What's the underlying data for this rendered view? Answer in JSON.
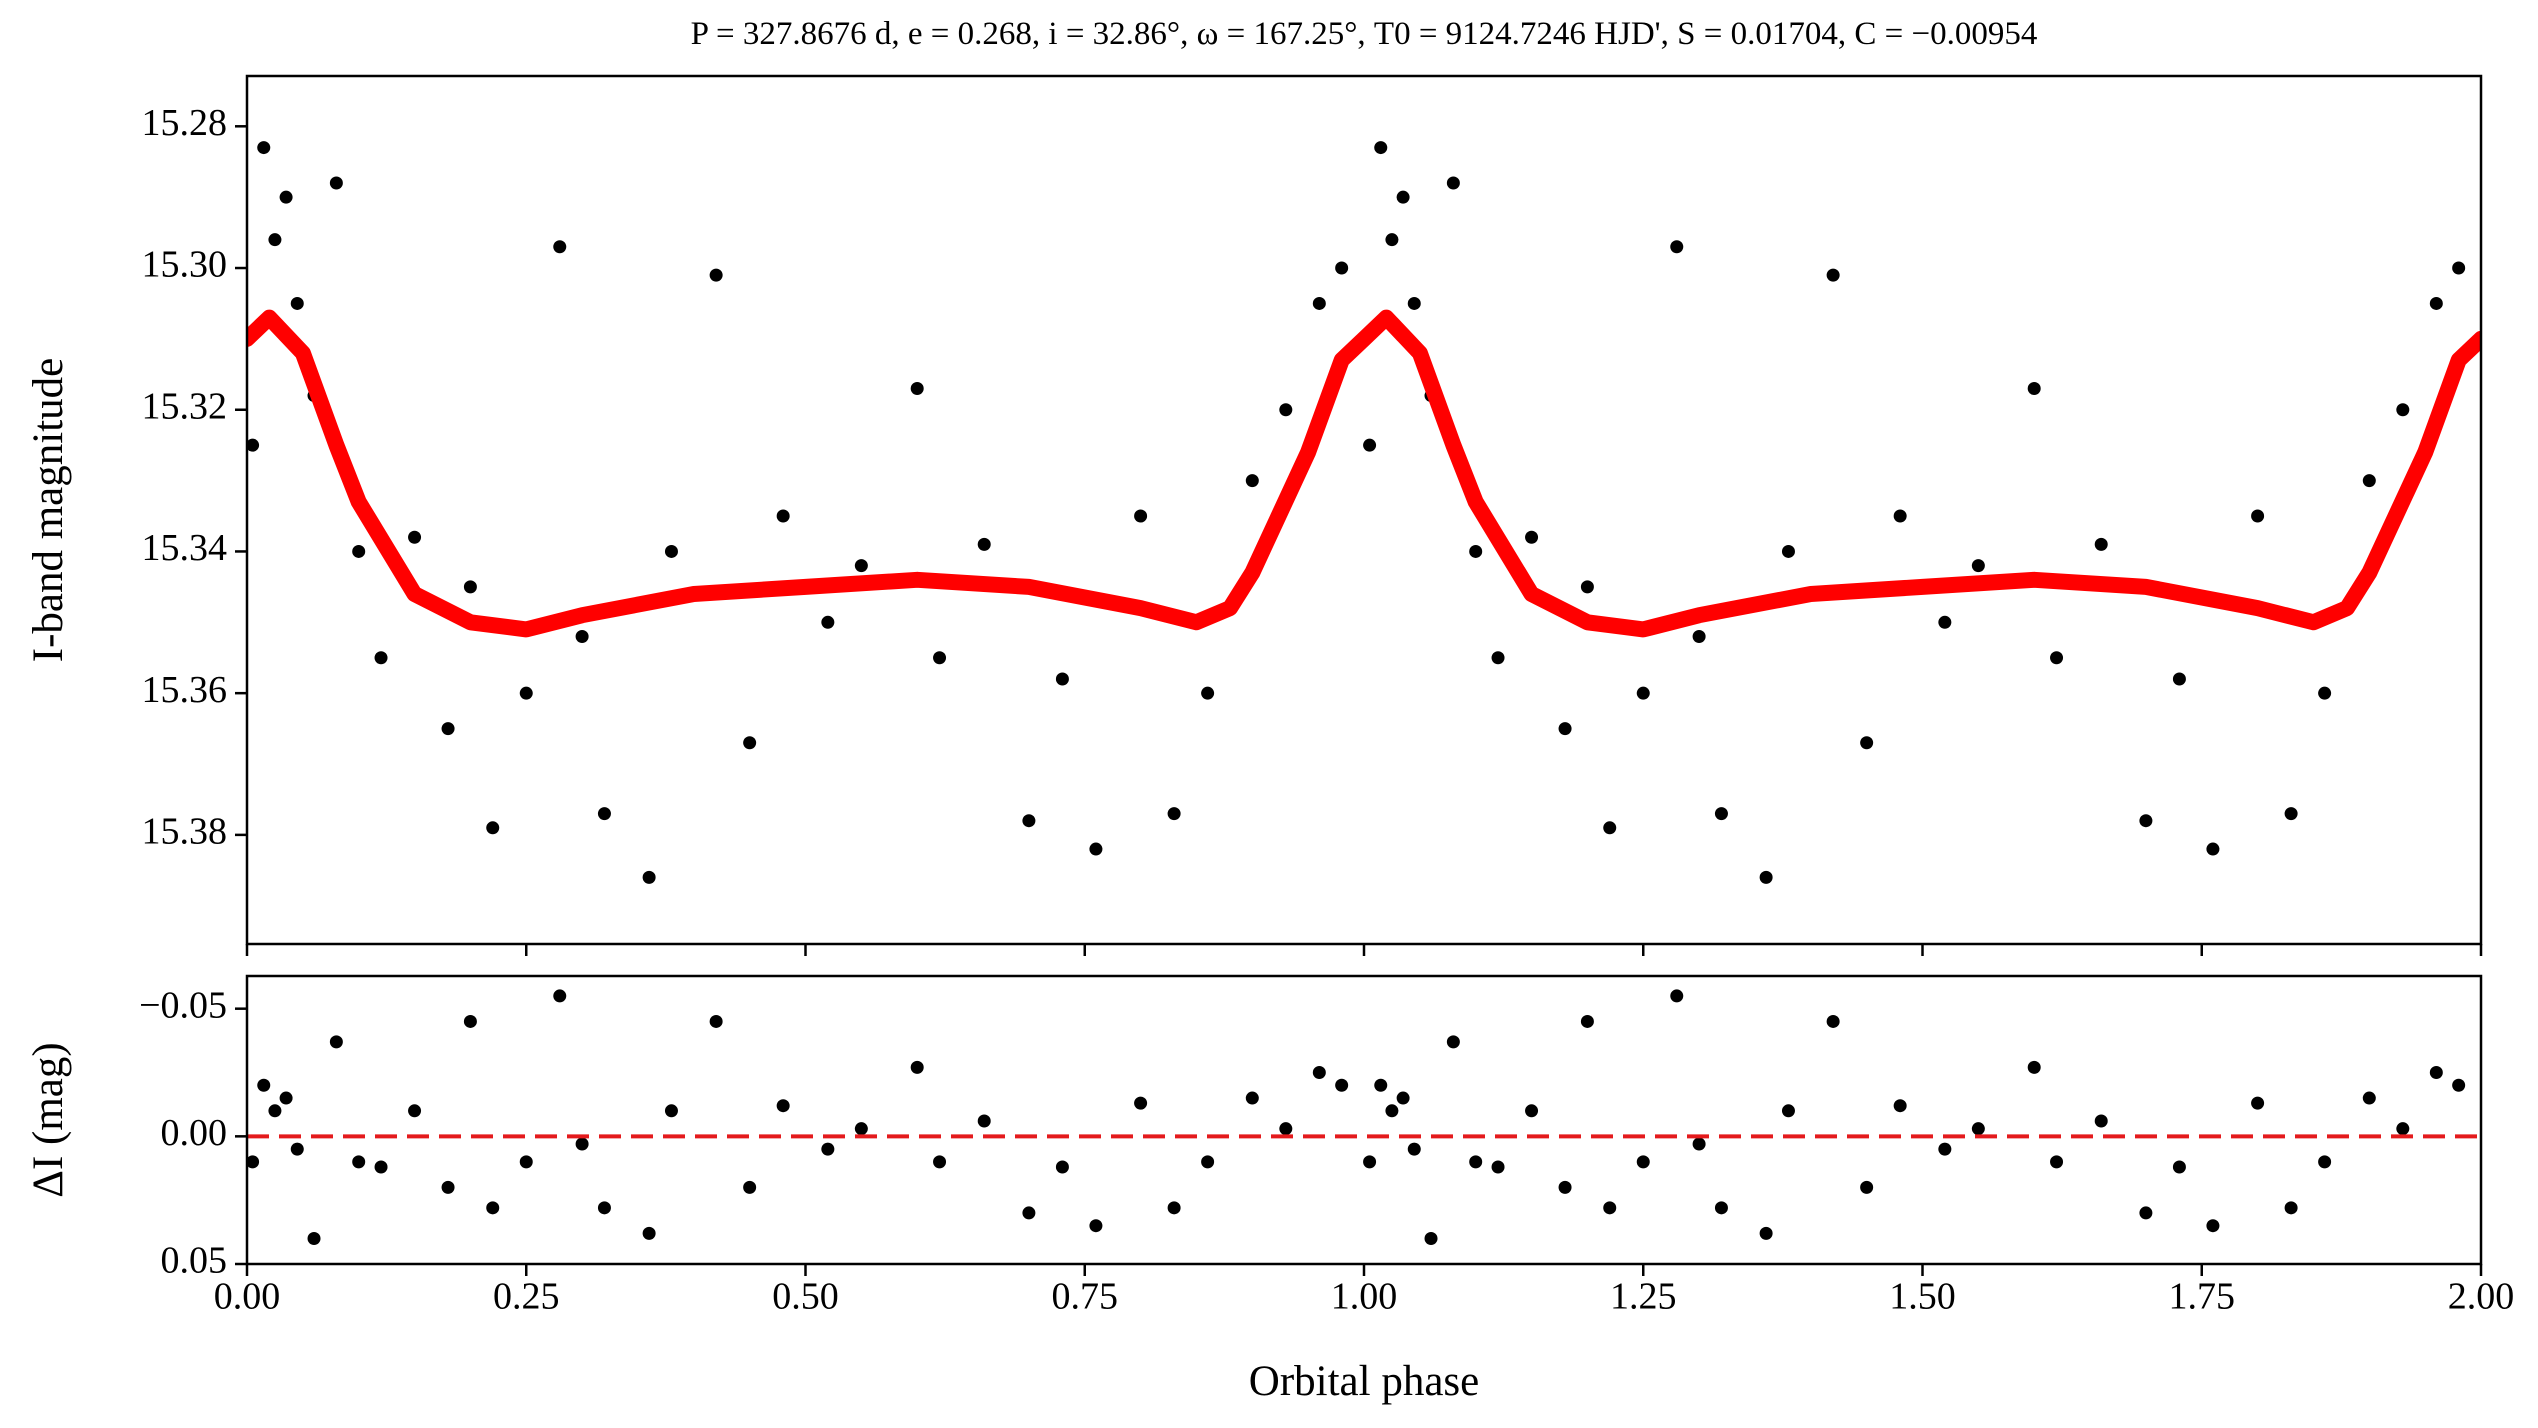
{
  "chart_data": [
    {
      "type": "scatter",
      "title": "P = 327.8676 d, e = 0.268, i = 32.86°, ω = 167.25°, T0 = 9124.7246 HJD', S = 0.01704, C = −0.00954",
      "ylabel": "I-band magnitude",
      "color": "#000000",
      "x": [
        0.005,
        0.015,
        0.025,
        0.035,
        0.045,
        0.06,
        0.08,
        0.1,
        0.12,
        0.15,
        0.18,
        0.2,
        0.22,
        0.25,
        0.28,
        0.3,
        0.32,
        0.36,
        0.38,
        0.42,
        0.45,
        0.48,
        0.52,
        0.55,
        0.6,
        0.62,
        0.66,
        0.7,
        0.73,
        0.76,
        0.8,
        0.83,
        0.86,
        0.9,
        0.93,
        0.96,
        0.98,
        1.005,
        1.015,
        1.025,
        1.035,
        1.045,
        1.06,
        1.08,
        1.1,
        1.12,
        1.15,
        1.18,
        1.2,
        1.22,
        1.25,
        1.28,
        1.3,
        1.32,
        1.36,
        1.38,
        1.42,
        1.45,
        1.48,
        1.52,
        1.55,
        1.6,
        1.62,
        1.66,
        1.7,
        1.73,
        1.76,
        1.8,
        1.83,
        1.86,
        1.9,
        1.93,
        1.96,
        1.98
      ],
      "values": [
        15.325,
        15.283,
        15.296,
        15.29,
        15.305,
        15.318,
        15.288,
        15.34,
        15.355,
        15.338,
        15.365,
        15.345,
        15.379,
        15.36,
        15.297,
        15.352,
        15.377,
        15.386,
        15.34,
        15.301,
        15.367,
        15.335,
        15.35,
        15.342,
        15.317,
        15.355,
        15.339,
        15.378,
        15.358,
        15.382,
        15.335,
        15.377,
        15.36,
        15.33,
        15.32,
        15.305,
        15.3,
        15.325,
        15.283,
        15.296,
        15.29,
        15.305,
        15.318,
        15.288,
        15.34,
        15.355,
        15.338,
        15.365,
        15.345,
        15.379,
        15.36,
        15.297,
        15.352,
        15.377,
        15.386,
        15.34,
        15.301,
        15.367,
        15.335,
        15.35,
        15.342,
        15.317,
        15.355,
        15.339,
        15.378,
        15.358,
        15.382,
        15.335,
        15.377,
        15.36,
        15.33,
        15.32,
        15.305,
        15.3
      ],
      "model": {
        "color": "#ff0000",
        "x": [
          0,
          0.02,
          0.05,
          0.08,
          0.1,
          0.15,
          0.2,
          0.25,
          0.3,
          0.4,
          0.5,
          0.6,
          0.7,
          0.8,
          0.85,
          0.88,
          0.9,
          0.95,
          0.98,
          1,
          1.02,
          1.05,
          1.08,
          1.1,
          1.15,
          1.2,
          1.25,
          1.3,
          1.4,
          1.5,
          1.6,
          1.7,
          1.8,
          1.85,
          1.88,
          1.9,
          1.95,
          1.98,
          2
        ],
        "values": [
          15.31,
          15.307,
          15.312,
          15.325,
          15.333,
          15.346,
          15.35,
          15.351,
          15.349,
          15.346,
          15.345,
          15.344,
          15.345,
          15.348,
          15.35,
          15.348,
          15.343,
          15.326,
          15.313,
          15.31,
          15.307,
          15.312,
          15.325,
          15.333,
          15.346,
          15.35,
          15.351,
          15.349,
          15.346,
          15.345,
          15.344,
          15.345,
          15.348,
          15.35,
          15.348,
          15.343,
          15.326,
          15.313,
          15.31
        ]
      },
      "xlim": [
        0,
        2
      ],
      "xticks": [
        0,
        0.25,
        0.5,
        0.75,
        1,
        1.25,
        1.5,
        1.75,
        2
      ],
      "ylim": [
        15.3954,
        15.2729
      ],
      "yticks": [
        {
          "value": 15.28,
          "label": "15.28"
        },
        {
          "value": 15.3,
          "label": "15.30"
        },
        {
          "value": 15.32,
          "label": "15.32"
        },
        {
          "value": 15.34,
          "label": "15.34"
        },
        {
          "value": 15.36,
          "label": "15.36"
        },
        {
          "value": 15.38,
          "label": "15.38"
        }
      ]
    },
    {
      "type": "scatter",
      "ylabel": "ΔI (mag)",
      "xlabel": "Orbital phase",
      "color": "#000000",
      "x": [
        0.005,
        0.015,
        0.025,
        0.035,
        0.045,
        0.06,
        0.08,
        0.1,
        0.12,
        0.15,
        0.18,
        0.2,
        0.22,
        0.25,
        0.28,
        0.3,
        0.32,
        0.36,
        0.38,
        0.42,
        0.45,
        0.48,
        0.52,
        0.55,
        0.6,
        0.62,
        0.66,
        0.7,
        0.73,
        0.76,
        0.8,
        0.83,
        0.86,
        0.9,
        0.93,
        0.96,
        0.98,
        1.005,
        1.015,
        1.025,
        1.035,
        1.045,
        1.06,
        1.08,
        1.1,
        1.12,
        1.15,
        1.18,
        1.2,
        1.22,
        1.25,
        1.28,
        1.3,
        1.32,
        1.36,
        1.38,
        1.42,
        1.45,
        1.48,
        1.52,
        1.55,
        1.6,
        1.62,
        1.66,
        1.7,
        1.73,
        1.76,
        1.8,
        1.83,
        1.86,
        1.9,
        1.93,
        1.96,
        1.98
      ],
      "values": [
        0.01,
        -0.02,
        -0.01,
        -0.015,
        0.005,
        0.04,
        -0.037,
        0.01,
        0.012,
        -0.01,
        0.02,
        -0.045,
        0.028,
        0.01,
        -0.055,
        0.003,
        0.028,
        0.038,
        -0.01,
        -0.045,
        0.02,
        -0.012,
        0.005,
        -0.003,
        -0.027,
        0.01,
        -0.006,
        0.03,
        0.012,
        0.035,
        -0.013,
        0.028,
        0.01,
        -0.015,
        -0.003,
        -0.025,
        -0.02,
        0.01,
        -0.02,
        -0.01,
        -0.015,
        0.005,
        0.04,
        -0.037,
        0.01,
        0.012,
        -0.01,
        0.02,
        -0.045,
        0.028,
        0.01,
        -0.055,
        0.003,
        0.028,
        0.038,
        -0.01,
        -0.045,
        0.02,
        -0.012,
        0.005,
        -0.003,
        -0.027,
        0.01,
        -0.006,
        0.03,
        0.012,
        0.035,
        -0.013,
        0.028,
        0.01,
        -0.015,
        -0.003,
        -0.025,
        -0.02
      ],
      "reference_line": {
        "value": 0,
        "color": "#e41a1c",
        "style": "dashed"
      },
      "xlim": [
        0,
        2
      ],
      "xticks": [
        {
          "value": 0,
          "label": "0.00"
        },
        {
          "value": 0.25,
          "label": "0.25"
        },
        {
          "value": 0.5,
          "label": "0.50"
        },
        {
          "value": 0.75,
          "label": "0.75"
        },
        {
          "value": 1,
          "label": "1.00"
        },
        {
          "value": 1.25,
          "label": "1.25"
        },
        {
          "value": 1.5,
          "label": "1.50"
        },
        {
          "value": 1.75,
          "label": "1.75"
        },
        {
          "value": 2,
          "label": "2.00"
        }
      ],
      "ylim": [
        0.05,
        -0.0628
      ],
      "yticks": [
        {
          "value": -0.05,
          "label": "−0.05"
        },
        {
          "value": 0,
          "label": "0.00"
        },
        {
          "value": 0.05,
          "label": "0.05"
        }
      ]
    }
  ]
}
